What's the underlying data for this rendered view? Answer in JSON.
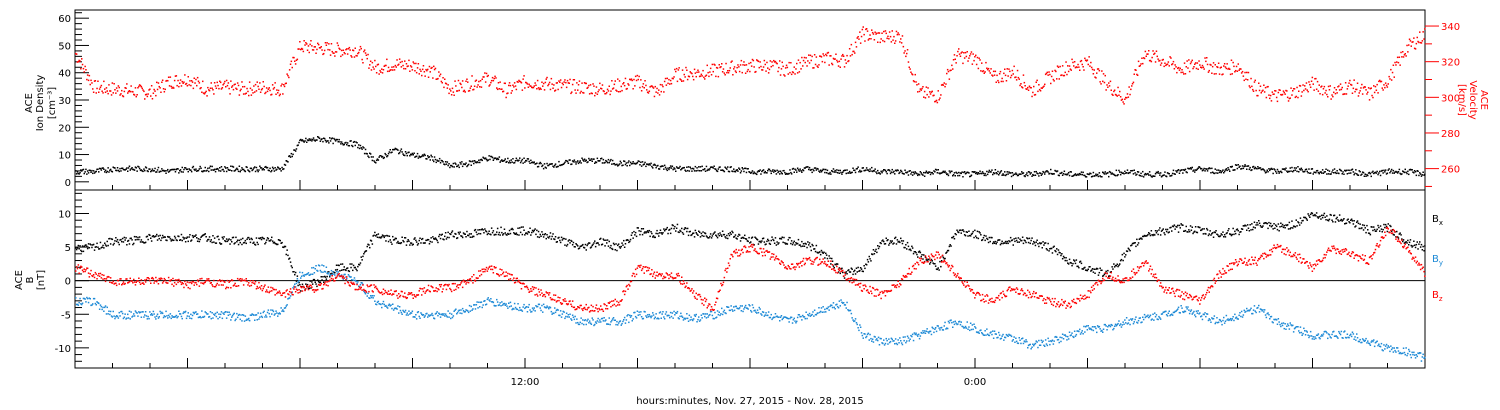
{
  "figure": {
    "xlabel": "hours:minutes, Nov. 27, 2015 - Nov. 28, 2015",
    "x_tick_labels": [
      {
        "hours": 12,
        "label": "12:00"
      },
      {
        "hours": 24,
        "label": "0:00"
      }
    ],
    "x_range_hours": [
      0,
      36
    ],
    "x_minor_step_hours": 1,
    "x_major_step_hours": 3,
    "colors": {
      "black": "#000000",
      "red": "#ff0000",
      "blue": "#1e8ad6"
    }
  },
  "chart_data": [
    {
      "type": "scatter",
      "title": "",
      "ylabel_lines": [
        "ACE",
        "Ion Density",
        "[cm⁻³]"
      ],
      "ylim": [
        -3,
        63
      ],
      "yticks": [
        0,
        10,
        20,
        30,
        40,
        50,
        60
      ],
      "y_minor_step": 2,
      "y2label_lines": [
        "ACE",
        "Velocity",
        "[km/s]"
      ],
      "y2lim": [
        248,
        349
      ],
      "y2ticks": [
        260,
        280,
        300,
        320,
        340
      ],
      "y2_minor_step": 10,
      "series": [
        {
          "axis": "left",
          "color": "#000000",
          "x": [
            0,
            0.5,
            1,
            1.5,
            2,
            2.5,
            3,
            3.5,
            4,
            4.5,
            5,
            5.5,
            6,
            6.5,
            7,
            7.5,
            8,
            8.5,
            9,
            9.5,
            10,
            10.5,
            11,
            11.5,
            12,
            12.5,
            13,
            13.5,
            14,
            14.5,
            15,
            15.5,
            16,
            16.5,
            17,
            17.5,
            18,
            18.5,
            19,
            19.5,
            20,
            20.5,
            21,
            21.5,
            22,
            22.5,
            23,
            23.5,
            24,
            24.5,
            25,
            25.5,
            26,
            26.5,
            27,
            27.5,
            28,
            28.5,
            29,
            29.5,
            30,
            30.5,
            31,
            31.5,
            32,
            32.5,
            33,
            33.5,
            34,
            34.5,
            35,
            35.5,
            36
          ],
          "y": [
            4,
            4,
            5,
            5,
            5,
            4,
            5,
            5,
            5,
            5,
            5,
            5,
            15,
            16,
            15,
            14,
            8,
            12,
            10,
            9,
            6,
            7,
            9,
            8,
            8,
            6,
            7,
            8,
            8,
            7,
            7,
            6,
            5,
            5,
            5,
            5,
            4,
            4,
            4,
            5,
            4,
            4,
            5,
            4,
            4,
            3,
            4,
            3,
            3,
            4,
            3,
            3,
            4,
            3,
            3,
            3,
            4,
            3,
            3,
            4,
            5,
            4,
            6,
            5,
            4,
            5,
            4,
            4,
            4,
            3,
            4,
            4,
            3
          ]
        },
        {
          "axis": "right",
          "color": "#ff0000",
          "x": [
            0,
            0.5,
            1,
            1.5,
            2,
            2.5,
            3,
            3.5,
            4,
            4.5,
            5,
            5.5,
            6,
            6.5,
            7,
            7.5,
            8,
            8.5,
            9,
            9.5,
            10,
            10.5,
            11,
            11.5,
            12,
            12.5,
            13,
            13.5,
            14,
            14.5,
            15,
            15.5,
            16,
            16.5,
            17,
            17.5,
            18,
            18.5,
            19,
            19.5,
            20,
            20.5,
            21,
            21.5,
            22,
            22.5,
            23,
            23.5,
            24,
            24.5,
            25,
            25.5,
            26,
            26.5,
            27,
            27.5,
            28,
            28.5,
            29,
            29.5,
            30,
            30.5,
            31,
            31.5,
            32,
            32.5,
            33,
            33.5,
            34,
            34.5,
            35,
            35.5,
            36
          ],
          "y": [
            325,
            306,
            305,
            304,
            303,
            309,
            311,
            305,
            306,
            305,
            306,
            305,
            329,
            328,
            327,
            327,
            317,
            319,
            318,
            315,
            305,
            308,
            311,
            304,
            309,
            308,
            307,
            306,
            305,
            307,
            309,
            303,
            313,
            314,
            315,
            317,
            318,
            318,
            316,
            320,
            322,
            321,
            336,
            334,
            335,
            303,
            301,
            324,
            322,
            311,
            315,
            304,
            312,
            318,
            320,
            308,
            299,
            325,
            321,
            316,
            320,
            316,
            318,
            305,
            301,
            303,
            308,
            303,
            307,
            302,
            310,
            328,
            336
          ]
        }
      ]
    },
    {
      "type": "scatter",
      "title": "",
      "ylabel_lines": [
        "ACE",
        "B",
        "[nT]"
      ],
      "ylim": [
        -13,
        13.5
      ],
      "yticks": [
        -10,
        -5,
        0,
        5,
        10
      ],
      "y_minor_step": 1,
      "zero_line": true,
      "legend_position": "right",
      "series": [
        {
          "name": "Bx",
          "legend_main": "B",
          "legend_sub": "x",
          "color": "#000000",
          "x": [
            0,
            0.5,
            1,
            1.5,
            2,
            2.5,
            3,
            3.5,
            4,
            4.5,
            5,
            5.5,
            6,
            6.5,
            7,
            7.5,
            8,
            8.5,
            9,
            9.5,
            10,
            10.5,
            11,
            11.5,
            12,
            12.5,
            13,
            13.5,
            14,
            14.5,
            15,
            15.5,
            16,
            16.5,
            17,
            17.5,
            18,
            18.5,
            19,
            19.5,
            20,
            20.5,
            21,
            21.5,
            22,
            22.5,
            23,
            23.5,
            24,
            24.5,
            25,
            25.5,
            26,
            26.5,
            27,
            27.5,
            28,
            28.5,
            29,
            29.5,
            30,
            30.5,
            31,
            31.5,
            32,
            32.5,
            33,
            33.5,
            34,
            34.5,
            35,
            35.5,
            36
          ],
          "y": [
            5,
            5,
            6,
            6,
            6.5,
            6.5,
            6.5,
            6.5,
            6,
            6,
            6,
            6,
            -1,
            0,
            2,
            2,
            7,
            6,
            6,
            6,
            7,
            7,
            7.5,
            7.5,
            7.5,
            7,
            6,
            5,
            6,
            5,
            7.5,
            7,
            8,
            7,
            7,
            7,
            6,
            6,
            6,
            5.5,
            4,
            1,
            2,
            6,
            6,
            4,
            2,
            7.5,
            7,
            6,
            6,
            6,
            5,
            3,
            2,
            1,
            4,
            7,
            7.5,
            8,
            7.5,
            7,
            7.5,
            8.5,
            8,
            8.5,
            10,
            9.5,
            9,
            7.5,
            8,
            6,
            5
          ]
        },
        {
          "name": "By",
          "legend_main": "B",
          "legend_sub": "y",
          "color": "#1e8ad6",
          "x": [
            0,
            0.5,
            1,
            1.5,
            2,
            2.5,
            3,
            3.5,
            4,
            4.5,
            5,
            5.5,
            6,
            6.5,
            7,
            7.5,
            8,
            8.5,
            9,
            9.5,
            10,
            10.5,
            11,
            11.5,
            12,
            12.5,
            13,
            13.5,
            14,
            14.5,
            15,
            15.5,
            16,
            16.5,
            17,
            17.5,
            18,
            18.5,
            19,
            19.5,
            20,
            20.5,
            21,
            21.5,
            22,
            22.5,
            23,
            23.5,
            24,
            24.5,
            25,
            25.5,
            26,
            26.5,
            27,
            27.5,
            28,
            28.5,
            29,
            29.5,
            30,
            30.5,
            31,
            31.5,
            32,
            32.5,
            33,
            33.5,
            34,
            34.5,
            35,
            35.5,
            36
          ],
          "y": [
            -3,
            -3,
            -5,
            -5,
            -5,
            -5,
            -5,
            -5,
            -5,
            -5.5,
            -5,
            -4.5,
            1,
            2,
            1,
            0,
            -3,
            -4,
            -5,
            -5,
            -5,
            -4,
            -3,
            -3.5,
            -4,
            -4,
            -5,
            -6,
            -6,
            -6,
            -5,
            -5,
            -5,
            -5.5,
            -5,
            -4,
            -4,
            -5,
            -6,
            -5,
            -4,
            -3,
            -8,
            -9,
            -9,
            -8,
            -7,
            -6,
            -7,
            -8,
            -8.5,
            -9.5,
            -9,
            -8,
            -7,
            -7,
            -6,
            -5.5,
            -5,
            -4,
            -5,
            -6,
            -5,
            -4,
            -6,
            -7,
            -8,
            -8,
            -8,
            -9,
            -10,
            -10.5,
            -11.5
          ]
        },
        {
          "name": "Bz",
          "legend_main": "B",
          "legend_sub": "z",
          "color": "#ff0000",
          "x": [
            0,
            0.5,
            1,
            1.5,
            2,
            2.5,
            3,
            3.5,
            4,
            4.5,
            5,
            5.5,
            6,
            6.5,
            7,
            7.5,
            8,
            8.5,
            9,
            9.5,
            10,
            10.5,
            11,
            11.5,
            12,
            12.5,
            13,
            13.5,
            14,
            14.5,
            15,
            15.5,
            16,
            16.5,
            17,
            17.5,
            18,
            18.5,
            19,
            19.5,
            20,
            20.5,
            21,
            21.5,
            22,
            22.5,
            23,
            23.5,
            24,
            24.5,
            25,
            25.5,
            26,
            26.5,
            27,
            27.5,
            28,
            28.5,
            29,
            29.5,
            30,
            30.5,
            31,
            31.5,
            32,
            32.5,
            33,
            33.5,
            34,
            34.5,
            35,
            35.5,
            36
          ],
          "y": [
            2,
            1,
            0,
            0,
            0,
            0,
            -0.5,
            0,
            -0.5,
            0,
            -1,
            -2,
            -1,
            -1,
            1,
            -1,
            -1,
            -2,
            -2,
            -1,
            -1,
            0,
            2,
            1,
            -1,
            -2,
            -3,
            -4,
            -4,
            -3,
            2,
            1,
            1,
            -2,
            -4,
            4,
            5,
            4,
            2,
            3,
            3,
            1,
            -1,
            -2,
            0,
            3,
            4,
            1,
            -2,
            -3,
            -1,
            -2,
            -3,
            -3.5,
            -2,
            1,
            0,
            3,
            -1,
            -2,
            -3,
            1,
            3,
            3,
            5,
            4,
            2,
            5,
            4,
            3,
            8,
            5,
            1
          ]
        }
      ]
    }
  ]
}
